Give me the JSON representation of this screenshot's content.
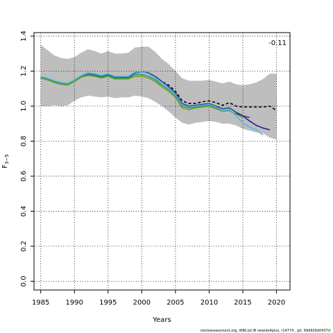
{
  "chart_data": {
    "type": "line",
    "xlabel": "Years",
    "ylabel": "F",
    "ylabel_sub": "3−5",
    "xlim": [
      1984,
      2022
    ],
    "ylim": [
      -0.05,
      1.42
    ],
    "x_ticks": [
      1985,
      1990,
      1995,
      2000,
      2005,
      2010,
      2015,
      2020
    ],
    "y_ticks": [
      0.0,
      0.2,
      0.4,
      0.6,
      0.8,
      1.0,
      1.2,
      1.4
    ],
    "grid": "dotted",
    "annotation": "-0.11",
    "footer": "stockassessment.org,  WBCod  IB  newidx4plus,  r14774 ,  git:  69d926d0437d",
    "band": {
      "x": [
        1985,
        1986,
        1987,
        1988,
        1989,
        1990,
        1991,
        1992,
        1993,
        1994,
        1995,
        1996,
        1997,
        1998,
        1999,
        2000,
        2001,
        2002,
        2003,
        2004,
        2005,
        2006,
        2007,
        2008,
        2009,
        2010,
        2011,
        2012,
        2013,
        2014,
        2015,
        2016,
        2017,
        2018,
        2019,
        2020
      ],
      "upper": [
        1.35,
        1.32,
        1.29,
        1.275,
        1.27,
        1.28,
        1.305,
        1.325,
        1.315,
        1.3,
        1.315,
        1.3,
        1.3,
        1.305,
        1.335,
        1.34,
        1.34,
        1.31,
        1.27,
        1.24,
        1.2,
        1.16,
        1.145,
        1.145,
        1.145,
        1.15,
        1.14,
        1.13,
        1.14,
        1.125,
        1.12,
        1.125,
        1.135,
        1.155,
        1.185,
        1.185
      ],
      "lower": [
        1.0,
        1.0,
        1.005,
        1.0,
        1.005,
        1.03,
        1.05,
        1.06,
        1.055,
        1.05,
        1.055,
        1.045,
        1.05,
        1.05,
        1.06,
        1.055,
        1.045,
        1.025,
        1.0,
        0.97,
        0.935,
        0.905,
        0.895,
        0.905,
        0.91,
        0.915,
        0.91,
        0.9,
        0.9,
        0.89,
        0.87,
        0.86,
        0.85,
        0.845,
        0.82,
        0.81
      ]
    },
    "series": [
      {
        "color": "#000000",
        "dash": "4,3",
        "width": 1.6,
        "x": [
          1985,
          1986,
          1987,
          1988,
          1989,
          1990,
          1991,
          1992,
          1993,
          1994,
          1995,
          1996,
          1997,
          1998,
          1999,
          2000,
          2001,
          2002,
          2003,
          2004,
          2005,
          2006,
          2007,
          2008,
          2009,
          2010,
          2011,
          2012,
          2013,
          2014,
          2015,
          2016,
          2017,
          2018,
          2019,
          2020
        ],
        "y": [
          1.165,
          1.155,
          1.14,
          1.13,
          1.125,
          1.145,
          1.17,
          1.185,
          1.18,
          1.17,
          1.18,
          1.165,
          1.165,
          1.165,
          1.19,
          1.195,
          1.19,
          1.17,
          1.14,
          1.12,
          1.085,
          1.03,
          1.015,
          1.015,
          1.025,
          1.03,
          1.02,
          1.005,
          1.02,
          1.0,
          0.995,
          0.995,
          0.995,
          0.995,
          1.0,
          0.975
        ]
      },
      {
        "color": "#1f4e9e",
        "dash": "",
        "width": 1.6,
        "x": [
          1985,
          1986,
          1987,
          1988,
          1989,
          1990,
          1991,
          1992,
          1993,
          1994,
          1995,
          1996,
          1997,
          1998,
          1999,
          2000,
          2001,
          2002,
          2003,
          2004,
          2005,
          2006,
          2007,
          2008,
          2009,
          2010,
          2011,
          2012,
          2013,
          2014,
          2015,
          2016
        ],
        "y": [
          1.165,
          1.155,
          1.14,
          1.13,
          1.125,
          1.145,
          1.17,
          1.185,
          1.18,
          1.17,
          1.18,
          1.165,
          1.165,
          1.165,
          1.19,
          1.195,
          1.19,
          1.17,
          1.14,
          1.11,
          1.075,
          1.015,
          1.0,
          1.005,
          1.01,
          1.015,
          1.0,
          0.985,
          0.99,
          0.965,
          0.945,
          0.935
        ]
      },
      {
        "color": "#2d1b8e",
        "dash": "",
        "width": 1.6,
        "x": [
          2014,
          2015,
          2016,
          2017,
          2018,
          2019
        ],
        "y": [
          0.96,
          0.945,
          0.915,
          0.89,
          0.875,
          0.865
        ]
      },
      {
        "color": "#7a9a2a",
        "dash": "",
        "width": 1.6,
        "x": [
          1985,
          1986,
          1987,
          1988,
          1989,
          1990,
          1991,
          1992,
          1993,
          1994,
          1995,
          1996,
          1997,
          1998,
          1999,
          2000,
          2001,
          2002,
          2003,
          2004,
          2005,
          2006,
          2007,
          2008,
          2009,
          2010,
          2011,
          2012,
          2013,
          2014,
          2015
        ],
        "y": [
          1.16,
          1.15,
          1.135,
          1.125,
          1.12,
          1.14,
          1.165,
          1.175,
          1.17,
          1.16,
          1.17,
          1.155,
          1.155,
          1.155,
          1.17,
          1.17,
          1.16,
          1.14,
          1.11,
          1.085,
          1.05,
          0.99,
          0.98,
          0.99,
          0.995,
          1.0,
          0.985,
          0.97,
          0.975,
          0.955,
          0.935
        ]
      },
      {
        "color": "#2e9a4a",
        "dash": "",
        "width": 1.6,
        "x": [
          1985,
          1986,
          1987,
          1988,
          1989,
          1990,
          1991,
          1992,
          1993,
          1994,
          1995,
          1996,
          1997,
          1998,
          1999,
          2000,
          2001,
          2002,
          2003,
          2004,
          2005,
          2006,
          2007,
          2008,
          2009,
          2010,
          2011,
          2012,
          2013,
          2014
        ],
        "y": [
          1.165,
          1.155,
          1.14,
          1.13,
          1.125,
          1.145,
          1.17,
          1.18,
          1.175,
          1.165,
          1.175,
          1.16,
          1.16,
          1.16,
          1.18,
          1.18,
          1.17,
          1.15,
          1.12,
          1.095,
          1.06,
          1.0,
          0.99,
          0.995,
          1.0,
          1.005,
          0.99,
          0.975,
          0.975,
          0.95
        ]
      },
      {
        "color": "#55b4e6",
        "dash": "",
        "width": 1.6,
        "x": [
          1985,
          1986,
          1987,
          1988,
          1989,
          1990,
          1991,
          1992,
          1993,
          1994,
          1995,
          1996,
          1997,
          1998,
          1999,
          2000,
          2001,
          2002,
          2003,
          2004,
          2005,
          2006,
          2007,
          2008,
          2009,
          2010,
          2011,
          2012,
          2013,
          2014,
          2015,
          2016,
          2017,
          2018
        ],
        "y": [
          1.17,
          1.16,
          1.145,
          1.135,
          1.13,
          1.15,
          1.175,
          1.19,
          1.185,
          1.175,
          1.185,
          1.17,
          1.17,
          1.17,
          1.195,
          1.195,
          1.185,
          1.16,
          1.125,
          1.1,
          1.065,
          1.005,
          0.995,
          1.0,
          1.005,
          1.01,
          0.995,
          0.975,
          0.98,
          0.945,
          0.905,
          0.88,
          0.865,
          0.835
        ]
      }
    ]
  }
}
